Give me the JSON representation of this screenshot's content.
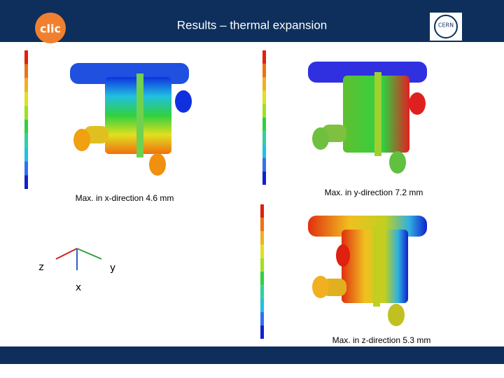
{
  "header": {
    "title": "Results – thermal expansion",
    "left_logo": "clic",
    "right_logo": "CERN"
  },
  "panels": [
    {
      "caption": "Max. in x-direction 4.6 mm"
    },
    {
      "caption": "Max. in y-direction 7.2 mm"
    },
    {
      "caption": "Max. in z-direction 5.3 mm"
    }
  ],
  "axes": {
    "labels": [
      "z",
      "y",
      "x"
    ]
  }
}
